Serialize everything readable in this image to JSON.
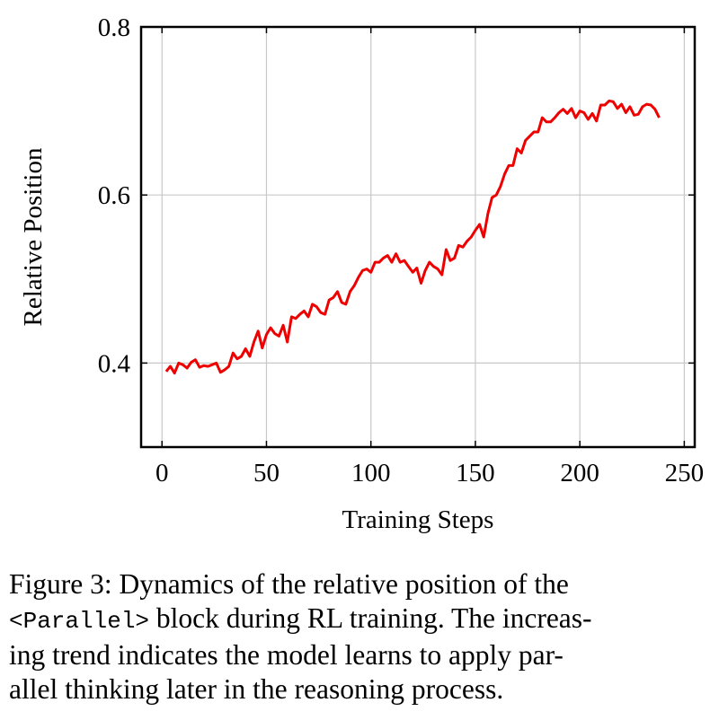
{
  "chart_data": {
    "type": "line",
    "xlabel": "Training Steps",
    "ylabel": "Relative Position",
    "xlim": [
      -10,
      255
    ],
    "ylim": [
      0.3,
      0.8
    ],
    "xticks": [
      0,
      50,
      100,
      150,
      200,
      250
    ],
    "yticks": [
      0.4,
      0.6,
      0.8
    ],
    "grid": true,
    "series": [
      {
        "color": "#ee0000",
        "x": [
          2,
          4,
          6,
          8,
          10,
          12,
          14,
          16,
          18,
          20,
          22,
          24,
          26,
          28,
          30,
          32,
          34,
          36,
          38,
          40,
          42,
          44,
          46,
          48,
          50,
          52,
          54,
          56,
          58,
          60,
          62,
          64,
          66,
          68,
          70,
          72,
          74,
          76,
          78,
          80,
          82,
          84,
          86,
          88,
          90,
          92,
          94,
          96,
          98,
          100,
          102,
          104,
          106,
          108,
          110,
          112,
          114,
          116,
          118,
          120,
          122,
          124,
          126,
          128,
          130,
          132,
          134,
          136,
          138,
          140,
          142,
          144,
          146,
          148,
          150,
          152,
          154,
          156,
          158,
          160,
          162,
          164,
          166,
          168,
          170,
          172,
          174,
          176,
          178,
          180,
          182,
          184,
          186,
          188,
          190,
          192,
          194,
          196,
          198,
          200,
          202,
          204,
          206,
          208,
          210,
          212,
          214,
          216,
          218,
          220,
          222,
          224,
          226,
          228,
          230,
          232,
          234,
          236,
          238
        ],
        "y": [
          0.39,
          0.396,
          0.388,
          0.4,
          0.398,
          0.394,
          0.401,
          0.404,
          0.395,
          0.397,
          0.396,
          0.398,
          0.4,
          0.389,
          0.392,
          0.396,
          0.412,
          0.405,
          0.408,
          0.417,
          0.408,
          0.425,
          0.438,
          0.418,
          0.434,
          0.442,
          0.435,
          0.432,
          0.445,
          0.425,
          0.455,
          0.453,
          0.458,
          0.462,
          0.455,
          0.47,
          0.467,
          0.46,
          0.458,
          0.475,
          0.478,
          0.485,
          0.472,
          0.47,
          0.485,
          0.492,
          0.502,
          0.51,
          0.512,
          0.508,
          0.52,
          0.52,
          0.525,
          0.528,
          0.52,
          0.53,
          0.52,
          0.522,
          0.515,
          0.508,
          0.513,
          0.495,
          0.51,
          0.52,
          0.515,
          0.512,
          0.505,
          0.535,
          0.522,
          0.525,
          0.54,
          0.538,
          0.545,
          0.55,
          0.558,
          0.565,
          0.55,
          0.578,
          0.597,
          0.6,
          0.61,
          0.625,
          0.635,
          0.635,
          0.655,
          0.65,
          0.665,
          0.67,
          0.675,
          0.675,
          0.692,
          0.687,
          0.687,
          0.692,
          0.698,
          0.702,
          0.697,
          0.703,
          0.692,
          0.7,
          0.698,
          0.69,
          0.697,
          0.688,
          0.707,
          0.707,
          0.712,
          0.711,
          0.703,
          0.708,
          0.698,
          0.705,
          0.695,
          0.696,
          0.705,
          0.708,
          0.707,
          0.702,
          0.692
        ]
      }
    ]
  },
  "caption": {
    "line1": "Figure 3: Dynamics of the relative position of the",
    "line2_code": "<Parallel>",
    "line2_rest": " block during RL training. The increas-",
    "line3": "ing trend indicates the model learns to apply par-",
    "line4": "allel thinking later in the reasoning process."
  }
}
